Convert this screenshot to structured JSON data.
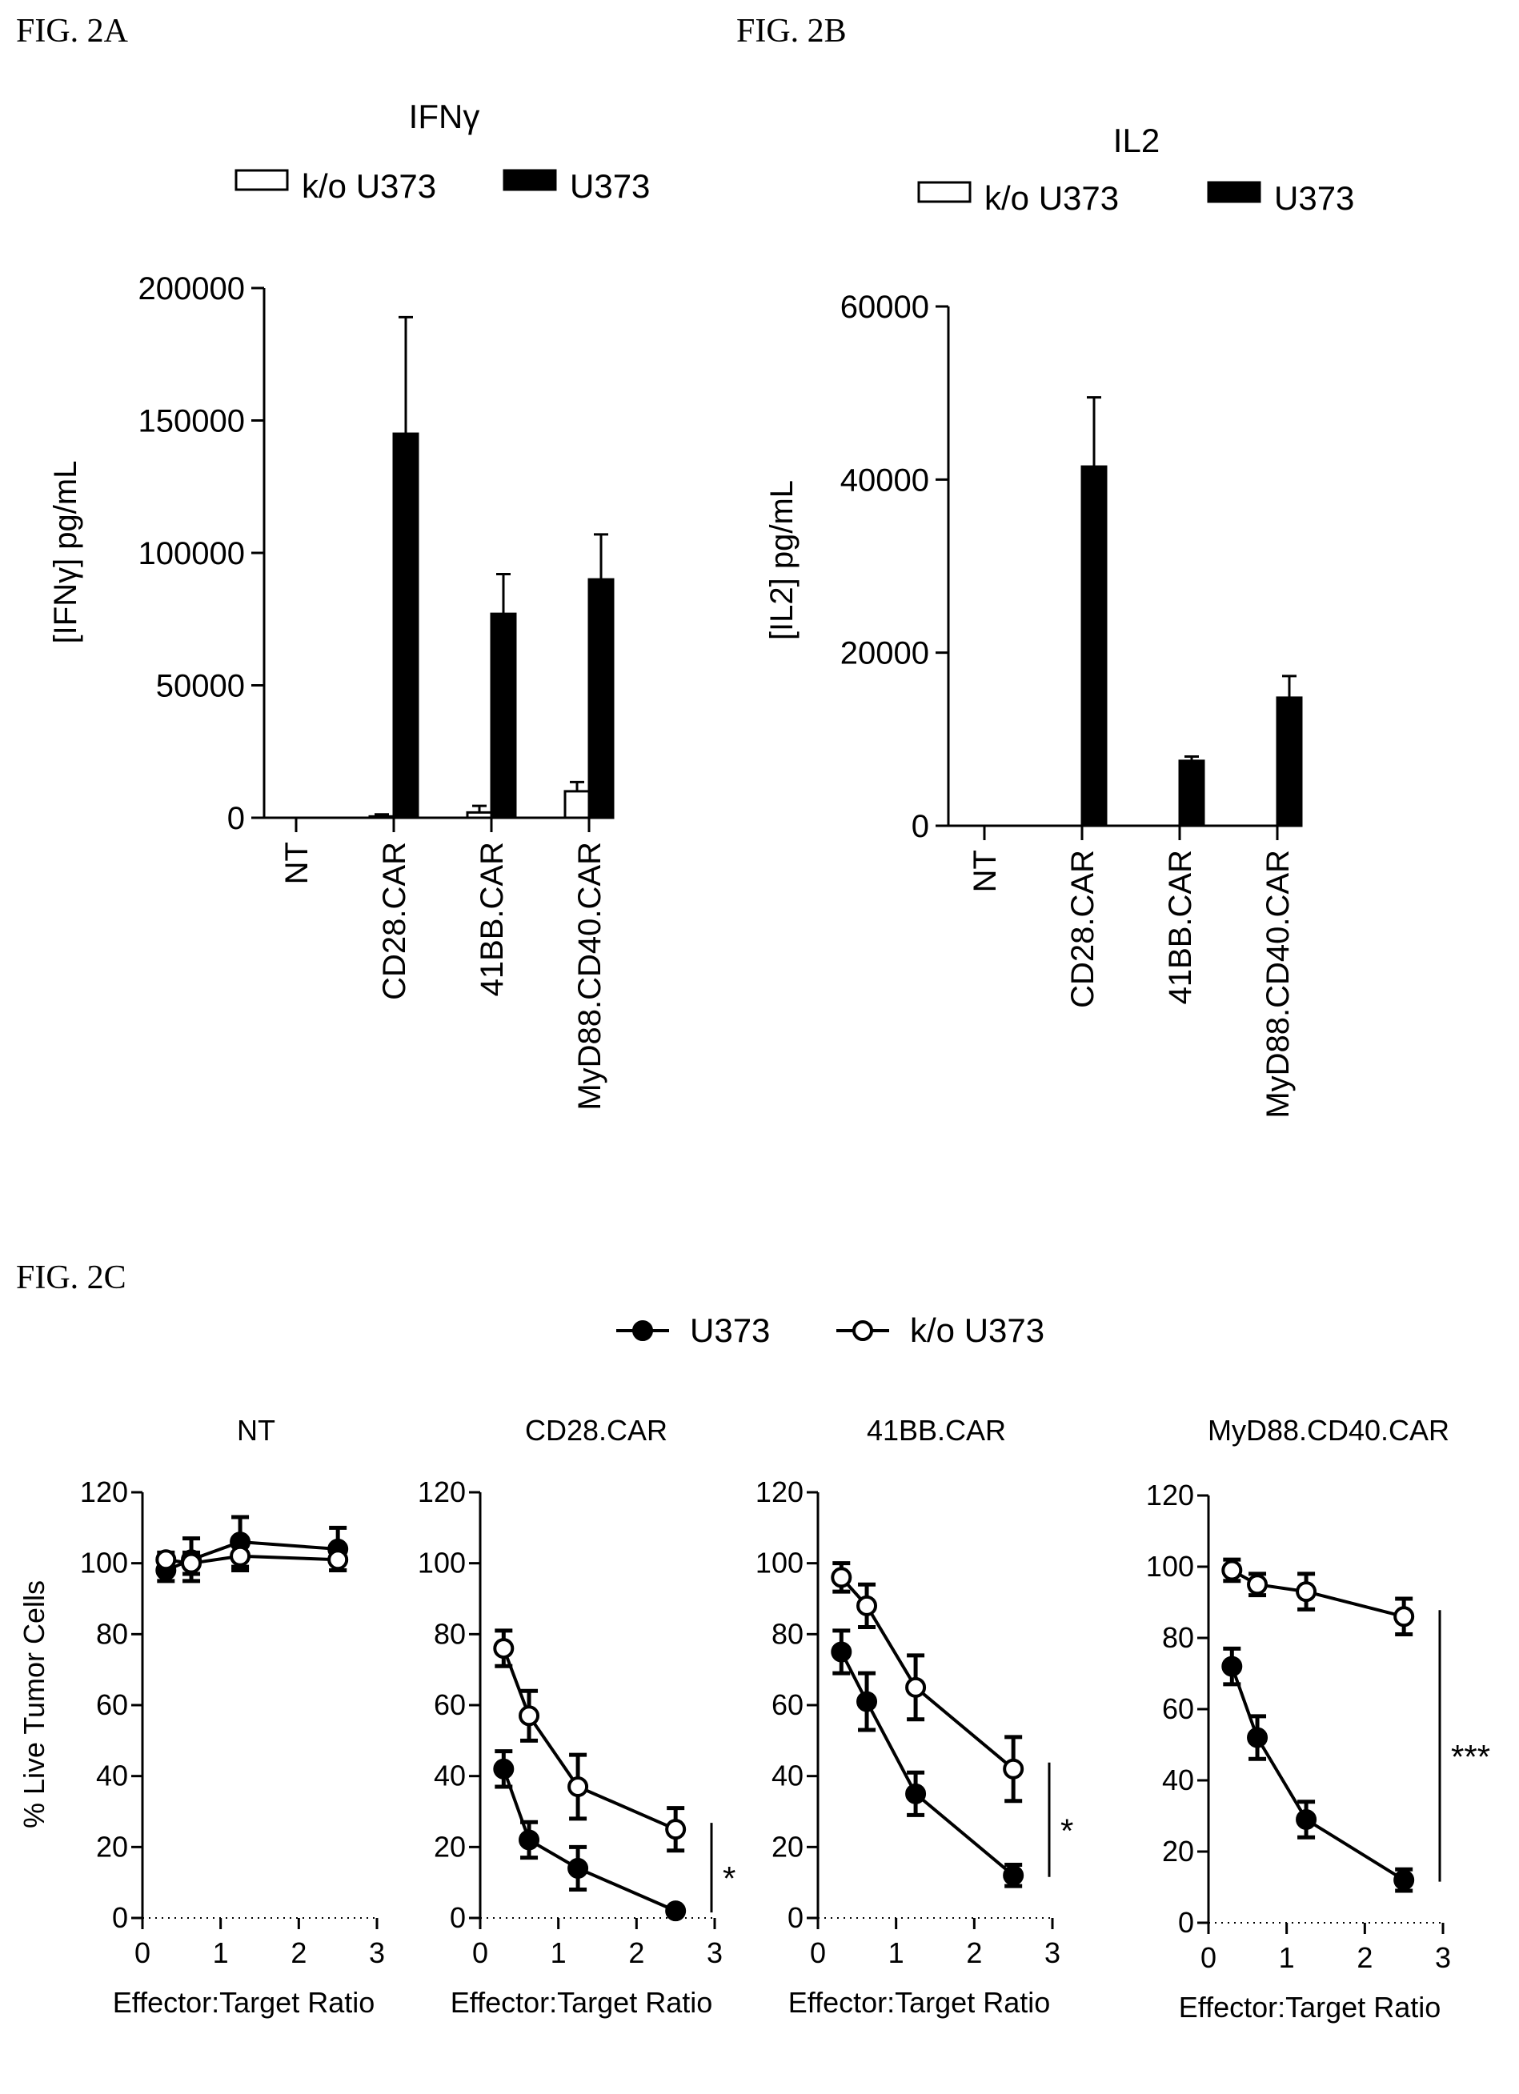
{
  "figure_labels": {
    "a": "FIG. 2A",
    "b": "FIG. 2B",
    "c": "FIG. 2C"
  },
  "colors": {
    "open": "#ffffff",
    "solid": "#000000",
    "stroke": "#000000"
  },
  "chart_data": [
    {
      "id": "fig2a",
      "type": "bar",
      "title": "IFNγ",
      "ylabel": "[IFNγ] pg/mL",
      "xlabel": "",
      "categories": [
        "NT",
        "CD28.CAR",
        "41BB.CAR",
        "MyD88.CD40.CAR"
      ],
      "ylim": [
        0,
        200000
      ],
      "yticks": [
        0,
        50000,
        100000,
        150000,
        200000
      ],
      "ytick_labels": [
        "0",
        "50000",
        "100000",
        "150000",
        "200000"
      ],
      "legend_position": "top",
      "grid": false,
      "series": [
        {
          "name": "k/o U373",
          "fill": "open",
          "values": [
            0,
            500,
            2000,
            10000
          ],
          "errors": [
            0,
            800,
            2500,
            3500
          ]
        },
        {
          "name": "U373",
          "fill": "solid",
          "values": [
            0,
            145000,
            77000,
            90000
          ],
          "errors": [
            0,
            44000,
            15000,
            17000
          ]
        }
      ]
    },
    {
      "id": "fig2b",
      "type": "bar",
      "title": "IL2",
      "ylabel": "[IL2] pg/mL",
      "xlabel": "",
      "categories": [
        "NT",
        "CD28.CAR",
        "41BB.CAR",
        "MyD88.CD40.CAR"
      ],
      "ylim": [
        0,
        60000
      ],
      "yticks": [
        0,
        20000,
        40000,
        60000
      ],
      "ytick_labels": [
        "0",
        "20000",
        "40000",
        "60000"
      ],
      "legend_position": "top",
      "grid": false,
      "series": [
        {
          "name": "k/o U373",
          "fill": "open",
          "values": [
            0,
            0,
            0,
            0
          ],
          "errors": [
            0,
            0,
            0,
            0
          ]
        },
        {
          "name": "U373",
          "fill": "solid",
          "values": [
            0,
            41500,
            7500,
            14800
          ],
          "errors": [
            0,
            8000,
            500,
            2500
          ]
        }
      ]
    },
    {
      "id": "fig2c",
      "type": "line",
      "legend": [
        {
          "name": "U373",
          "marker": "filled"
        },
        {
          "name": "k/o U373",
          "marker": "open"
        }
      ],
      "ylabel": "% Live Tumor  Cells",
      "xlabel": "Effector:Target Ratio",
      "xlim": [
        0,
        3
      ],
      "ylim": [
        0,
        120
      ],
      "xticks": [
        0,
        1,
        2,
        3
      ],
      "yticks": [
        0,
        20,
        40,
        60,
        80,
        100,
        120
      ],
      "legend_position": "top",
      "grid": false,
      "panels": [
        {
          "title": "NT",
          "significance": "",
          "series": [
            {
              "name": "U373",
              "marker": "filled",
              "x": [
                0.3,
                0.625,
                1.25,
                2.5
              ],
              "y": [
                98,
                101,
                106,
                104
              ],
              "err": [
                3,
                6,
                7,
                6
              ]
            },
            {
              "name": "k/o U373",
              "marker": "open",
              "x": [
                0.3,
                0.625,
                1.25,
                2.5
              ],
              "y": [
                101,
                100,
                102,
                101
              ],
              "err": [
                2,
                3,
                4,
                3
              ]
            }
          ]
        },
        {
          "title": "CD28.CAR",
          "significance": "*",
          "series": [
            {
              "name": "U373",
              "marker": "filled",
              "x": [
                0.3,
                0.625,
                1.25,
                2.5
              ],
              "y": [
                42,
                22,
                14,
                2
              ],
              "err": [
                5,
                5,
                6,
                1
              ]
            },
            {
              "name": "k/o U373",
              "marker": "open",
              "x": [
                0.3,
                0.625,
                1.25,
                2.5
              ],
              "y": [
                76,
                57,
                37,
                25
              ],
              "err": [
                5,
                7,
                9,
                6
              ]
            }
          ]
        },
        {
          "title": "41BB.CAR",
          "significance": "*",
          "series": [
            {
              "name": "U373",
              "marker": "filled",
              "x": [
                0.3,
                0.625,
                1.25,
                2.5
              ],
              "y": [
                75,
                61,
                35,
                12
              ],
              "err": [
                6,
                8,
                6,
                3
              ]
            },
            {
              "name": "k/o U373",
              "marker": "open",
              "x": [
                0.3,
                0.625,
                1.25,
                2.5
              ],
              "y": [
                96,
                88,
                65,
                42
              ],
              "err": [
                4,
                6,
                9,
                9
              ]
            }
          ]
        },
        {
          "title": "MyD88.CD40.CAR",
          "significance": "***",
          "series": [
            {
              "name": "U373",
              "marker": "filled",
              "x": [
                0.3,
                0.625,
                1.25,
                2.5
              ],
              "y": [
                72,
                52,
                29,
                12
              ],
              "err": [
                5,
                6,
                5,
                3
              ]
            },
            {
              "name": "k/o U373",
              "marker": "open",
              "x": [
                0.3,
                0.625,
                1.25,
                2.5
              ],
              "y": [
                99,
                95,
                93,
                86
              ],
              "err": [
                3,
                3,
                5,
                5
              ]
            }
          ]
        }
      ]
    }
  ]
}
